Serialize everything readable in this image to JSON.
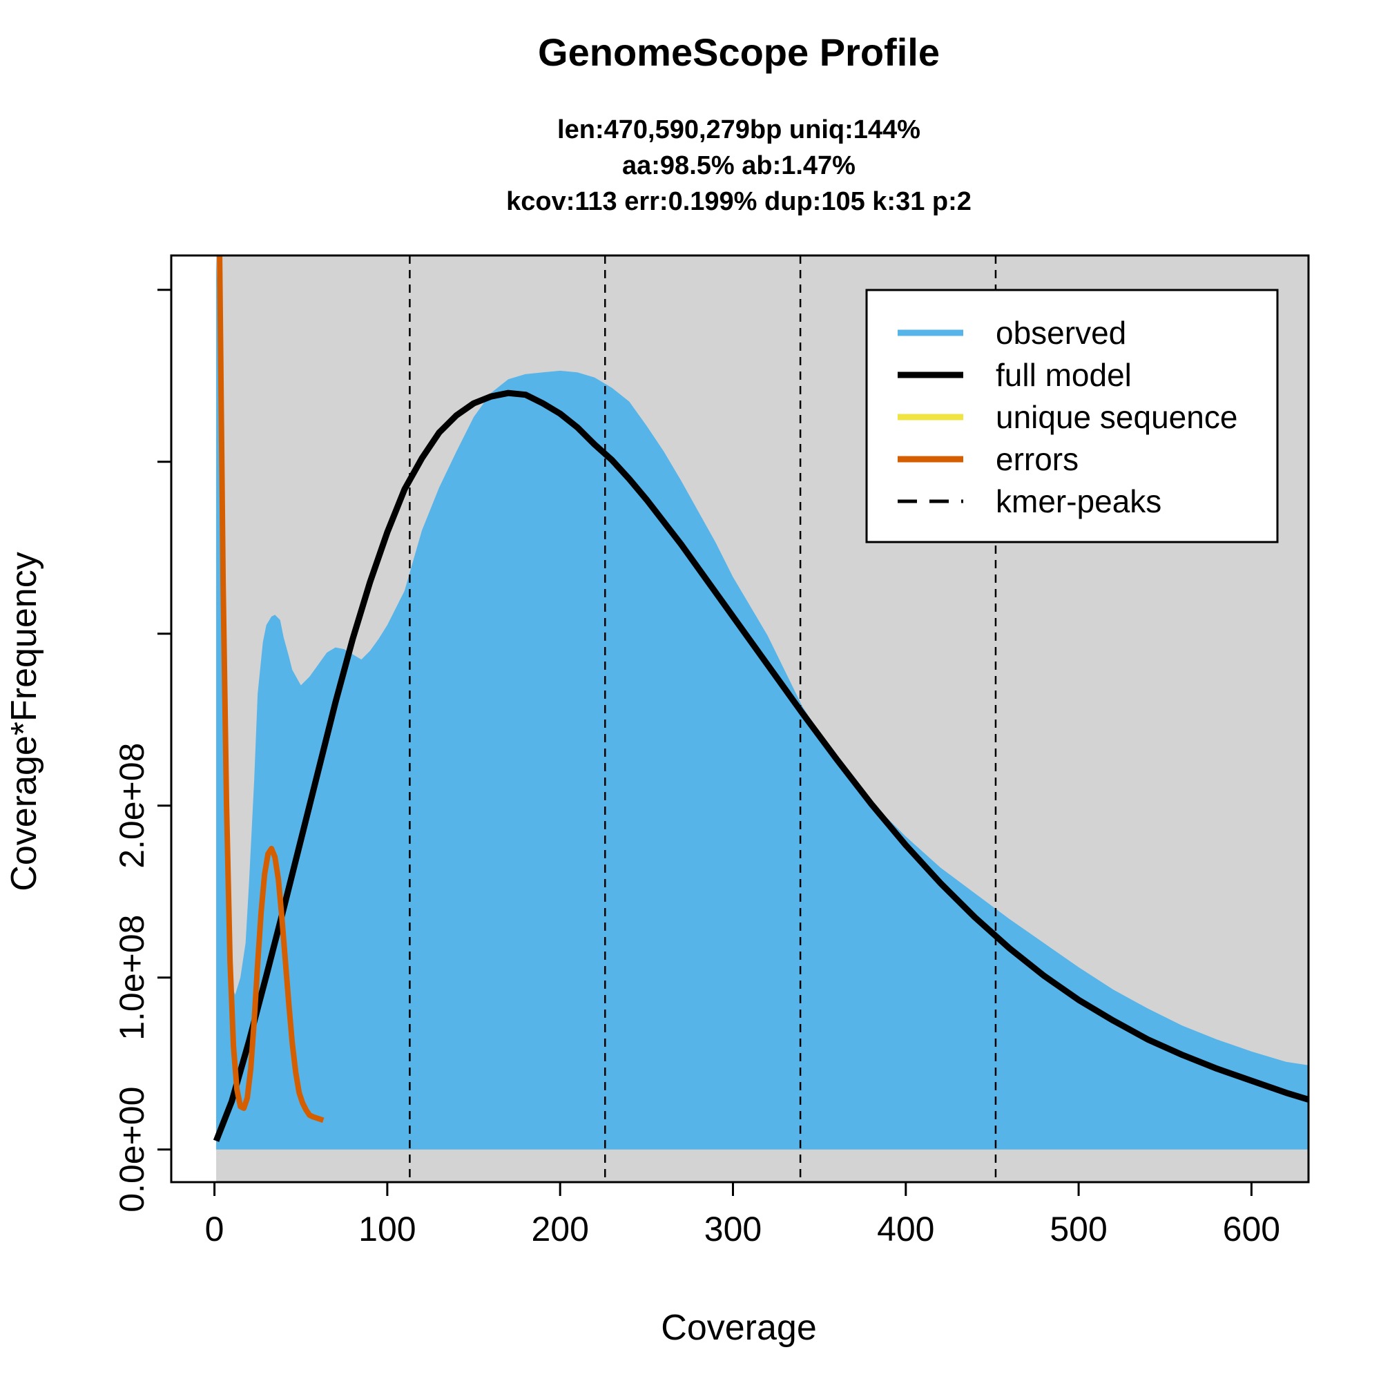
{
  "chart_data": {
    "type": "area",
    "title": "GenomeScope Profile",
    "subtitle_lines": [
      "len:470,590,279bp uniq:144%",
      "aa:98.5% ab:1.47%",
      "kcov:113 err:0.199%  dup:105  k:31 p:2"
    ],
    "xlabel": "Coverage",
    "ylabel": "Coverage*Frequency",
    "xlim": [
      -25,
      633
    ],
    "ylim": [
      -19000000.0,
      520000000.0
    ],
    "x_ticks": [
      0,
      100,
      200,
      300,
      400,
      500,
      600
    ],
    "x_tick_labels": [
      "0",
      "100",
      "200",
      "300",
      "400",
      "500",
      "600"
    ],
    "y_ticks": [
      0,
      100000000.0,
      200000000.0,
      300000000.0,
      400000000.0,
      500000000.0
    ],
    "y_tick_labels": [
      "0.0e+00",
      "1.0e+08",
      "2.0e+08",
      "",
      "",
      ""
    ],
    "legend_position": "top-right",
    "colors": {
      "background": "#d3d3d3",
      "observed": "#56b4e9",
      "full_model": "#000000",
      "unique_sequence": "#f0e442",
      "errors": "#d55e00"
    },
    "legend": [
      {
        "label": "observed",
        "style": "solid",
        "color": "#56b4e9"
      },
      {
        "label": "full model",
        "style": "solid",
        "color": "#000000"
      },
      {
        "label": "unique sequence",
        "style": "solid",
        "color": "#f0e442"
      },
      {
        "label": "errors",
        "style": "solid",
        "color": "#d55e00"
      },
      {
        "label": "kmer-peaks",
        "style": "dashed",
        "color": "#000000"
      }
    ],
    "kmer_peaks": [
      113,
      226,
      339,
      452
    ],
    "series": [
      {
        "name": "observed",
        "x": [
          1,
          3,
          5,
          8,
          10,
          12,
          15,
          18,
          20,
          23,
          25,
          28,
          30,
          33,
          35,
          38,
          40,
          43,
          45,
          50,
          55,
          60,
          65,
          70,
          75,
          80,
          85,
          90,
          95,
          100,
          110,
          120,
          130,
          140,
          150,
          160,
          170,
          180,
          190,
          200,
          210,
          220,
          230,
          240,
          250,
          260,
          270,
          280,
          290,
          300,
          320,
          340,
          360,
          380,
          400,
          420,
          440,
          460,
          480,
          500,
          520,
          540,
          560,
          580,
          600,
          620,
          633
        ],
        "y": [
          520000000,
          470000000,
          350000000,
          200000000,
          95000000,
          90000000,
          100000000,
          120000000,
          155000000,
          215000000,
          265000000,
          295000000,
          305000000,
          310000000,
          311000000,
          308000000,
          298000000,
          287000000,
          279000000,
          270000000,
          275000000,
          282000000,
          289000000,
          292000000,
          291000000,
          288000000,
          285000000,
          290000000,
          297000000,
          305000000,
          325000000,
          360000000,
          385000000,
          406000000,
          426000000,
          440000000,
          448000000,
          451000000,
          452000000,
          453000000,
          452000000,
          449000000,
          443000000,
          435000000,
          421000000,
          406000000,
          389000000,
          371000000,
          353000000,
          333000000,
          299000000,
          258000000,
          227000000,
          202000000,
          182000000,
          164000000,
          149000000,
          134000000,
          120000000,
          106000000,
          93000000,
          82000000,
          72000000,
          64000000,
          57000000,
          51000000,
          49000000
        ]
      },
      {
        "name": "full model",
        "x": [
          1,
          10,
          20,
          30,
          40,
          50,
          60,
          70,
          80,
          90,
          100,
          110,
          120,
          130,
          140,
          150,
          160,
          170,
          180,
          190,
          200,
          210,
          220,
          230,
          240,
          250,
          260,
          270,
          280,
          290,
          300,
          320,
          340,
          360,
          380,
          400,
          420,
          440,
          460,
          480,
          500,
          520,
          540,
          560,
          580,
          600,
          620,
          633
        ],
        "y": [
          5000000,
          28000000,
          63000000,
          101000000,
          140000000,
          180000000,
          220000000,
          260000000,
          297000000,
          330000000,
          359000000,
          384000000,
          402000000,
          417000000,
          427000000,
          434000000,
          438000000,
          440000000,
          439000000,
          434000000,
          428000000,
          420000000,
          410000000,
          401000000,
          390000000,
          378000000,
          365000000,
          352000000,
          338000000,
          324000000,
          310000000,
          282000000,
          254000000,
          227000000,
          201000000,
          177000000,
          155000000,
          135000000,
          117000000,
          101000000,
          87000000,
          75000000,
          64000000,
          55000000,
          47000000,
          40000000,
          33000000,
          29000000
        ]
      },
      {
        "name": "errors",
        "x": [
          3,
          5,
          7,
          9,
          11,
          13,
          15,
          17,
          19,
          21,
          23,
          25,
          27,
          29,
          31,
          33,
          35,
          37,
          39,
          41,
          43,
          45,
          47,
          49,
          51,
          53,
          55,
          57,
          60,
          63
        ],
        "y": [
          520000000,
          330000000,
          200000000,
          110000000,
          60000000,
          35000000,
          25000000,
          24000000,
          30000000,
          47000000,
          75000000,
          108000000,
          138000000,
          160000000,
          172000000,
          175000000,
          170000000,
          157000000,
          135000000,
          110000000,
          85000000,
          62000000,
          45000000,
          33000000,
          27000000,
          23000000,
          20000000,
          19000000,
          18000000,
          17000000
        ]
      }
    ]
  }
}
